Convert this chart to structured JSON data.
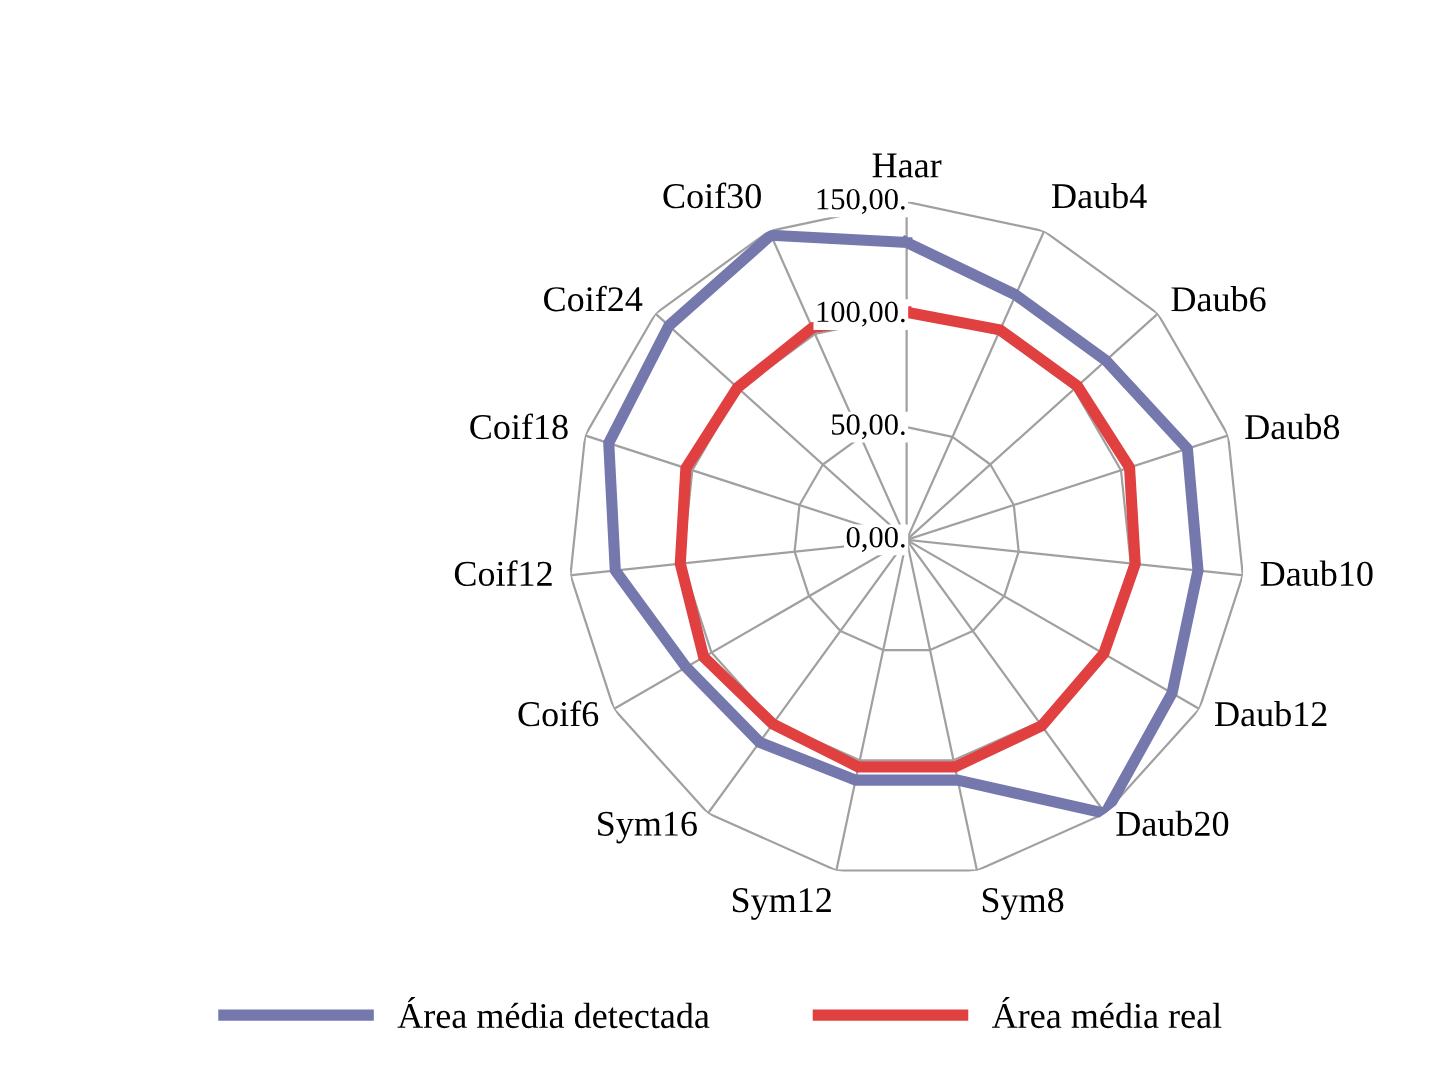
{
  "chart_data": {
    "type": "radar",
    "categories": [
      "Haar",
      "Daub4",
      "Daub6",
      "Daub8",
      "Daub10",
      "Daub12",
      "Daub20",
      "Sym8",
      "Sym12",
      "Sym16",
      "Coif6",
      "Coif12",
      "Coif18",
      "Coif24",
      "Coif30"
    ],
    "series": [
      {
        "name": "Área média detectada",
        "color": "#7478ad",
        "values": [
          132,
          119,
          119,
          131,
          130,
          136,
          150,
          109,
          109,
          111,
          113,
          130,
          139,
          142,
          148
        ]
      },
      {
        "name": "Área média real",
        "color": "#e04040",
        "values": [
          101,
          102,
          102,
          104,
          102,
          101,
          102,
          103,
          103,
          101,
          104,
          101,
          103,
          101,
          103
        ]
      }
    ],
    "ylim": [
      0,
      150
    ],
    "yticks": [
      {
        "value": 0,
        "label": "0,00."
      },
      {
        "value": 50,
        "label": "50,00."
      },
      {
        "value": 100,
        "label": "100,00."
      },
      {
        "value": 150,
        "label": "150,00."
      }
    ],
    "legend": "bottom",
    "grid": true
  }
}
